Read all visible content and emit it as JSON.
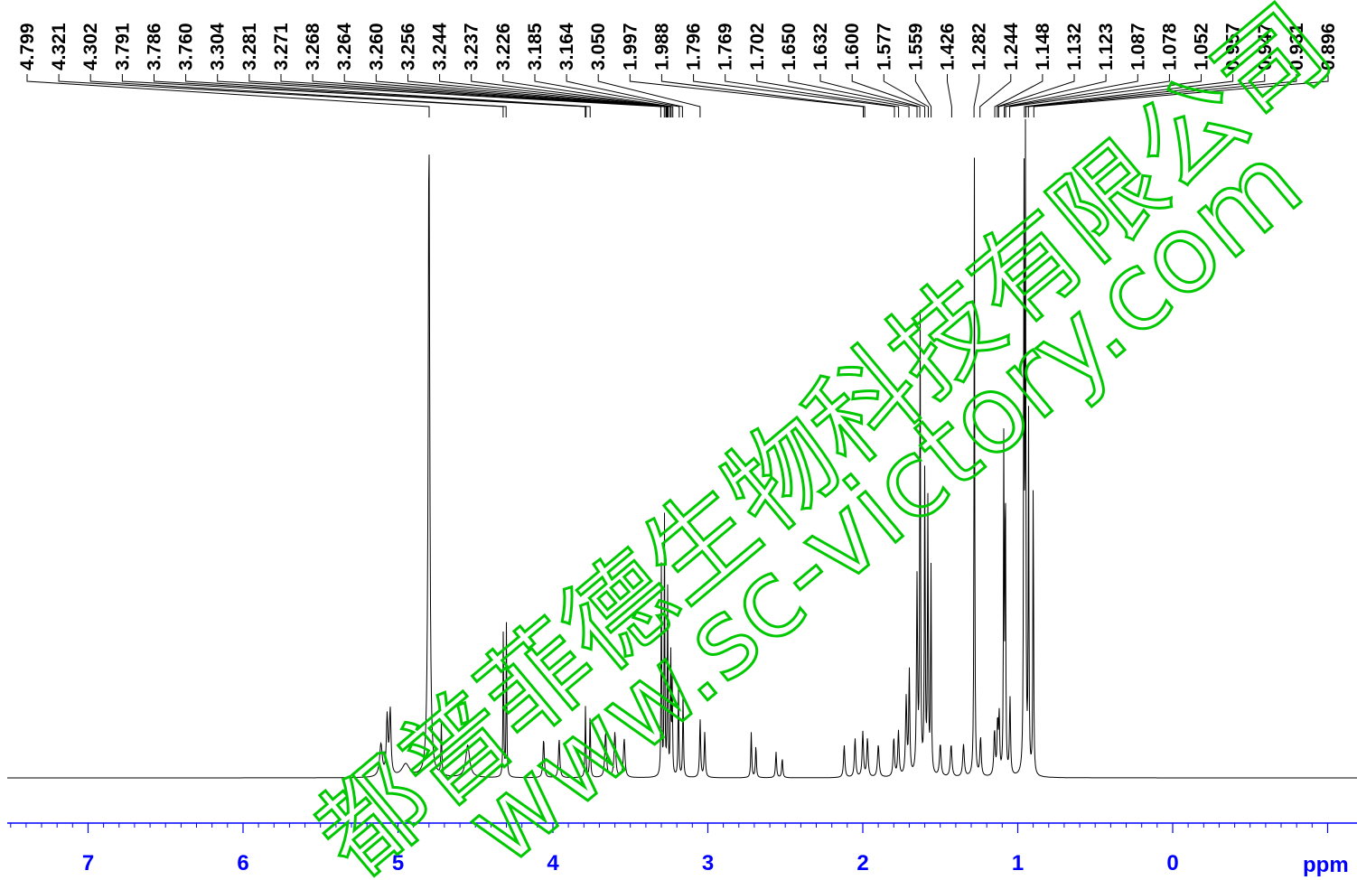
{
  "chart_data": {
    "type": "line",
    "title": "",
    "xlabel": "ppm",
    "ylabel": "",
    "xlim": [
      7.6,
      -1.05
    ],
    "x_direction": "reversed",
    "grid": false,
    "legend": "none",
    "ticks": [
      {
        "value": 7,
        "label": "7"
      },
      {
        "value": 6,
        "label": "6"
      },
      {
        "value": 5,
        "label": "5"
      },
      {
        "value": 4,
        "label": "4"
      },
      {
        "value": 3,
        "label": "3"
      },
      {
        "value": 2,
        "label": "2"
      },
      {
        "value": 1,
        "label": "1"
      },
      {
        "value": 0,
        "label": "0"
      }
    ],
    "minor_tick_step": 0.1,
    "peak_labels": [
      "4.799",
      "4.321",
      "4.302",
      "3.791",
      "3.786",
      "3.760",
      "3.304",
      "3.281",
      "3.271",
      "3.268",
      "3.264",
      "3.260",
      "3.256",
      "3.244",
      "3.237",
      "3.226",
      "3.185",
      "3.164",
      "3.050",
      "1.997",
      "1.988",
      "1.796",
      "1.769",
      "1.702",
      "1.650",
      "1.632",
      "1.600",
      "1.577",
      "1.559",
      "1.426",
      "1.282",
      "1.244",
      "1.148",
      "1.132",
      "1.123",
      "1.087",
      "1.078",
      "1.052",
      "0.957",
      "0.947",
      "0.931",
      "0.896"
    ],
    "spectrum_peaks": [
      {
        "ppm": 5.11,
        "intensity": 0.05,
        "width": 0.02
      },
      {
        "ppm": 5.07,
        "intensity": 0.09,
        "width": 0.012
      },
      {
        "ppm": 5.05,
        "intensity": 0.1,
        "width": 0.012
      },
      {
        "ppm": 4.95,
        "intensity": 0.02,
        "width": 0.06
      },
      {
        "ppm": 4.8,
        "intensity": 1.0,
        "width": 0.012
      },
      {
        "ppm": 4.72,
        "intensity": 0.08,
        "width": 0.006
      },
      {
        "ppm": 4.55,
        "intensity": 0.05,
        "width": 0.03
      },
      {
        "ppm": 4.32,
        "intensity": 0.24,
        "width": 0.005
      },
      {
        "ppm": 4.3,
        "intensity": 0.24,
        "width": 0.005
      },
      {
        "ppm": 4.06,
        "intensity": 0.06,
        "width": 0.01
      },
      {
        "ppm": 3.96,
        "intensity": 0.06,
        "width": 0.01
      },
      {
        "ppm": 3.79,
        "intensity": 0.11,
        "width": 0.006
      },
      {
        "ppm": 3.76,
        "intensity": 0.1,
        "width": 0.006
      },
      {
        "ppm": 3.66,
        "intensity": 0.07,
        "width": 0.012
      },
      {
        "ppm": 3.6,
        "intensity": 0.07,
        "width": 0.012
      },
      {
        "ppm": 3.54,
        "intensity": 0.06,
        "width": 0.012
      },
      {
        "ppm": 3.3,
        "intensity": 0.33,
        "width": 0.005
      },
      {
        "ppm": 3.28,
        "intensity": 0.4,
        "width": 0.005
      },
      {
        "ppm": 3.26,
        "intensity": 0.3,
        "width": 0.005
      },
      {
        "ppm": 3.24,
        "intensity": 0.21,
        "width": 0.005
      },
      {
        "ppm": 3.23,
        "intensity": 0.15,
        "width": 0.005
      },
      {
        "ppm": 3.19,
        "intensity": 0.14,
        "width": 0.006
      },
      {
        "ppm": 3.16,
        "intensity": 0.13,
        "width": 0.006
      },
      {
        "ppm": 3.05,
        "intensity": 0.09,
        "width": 0.008
      },
      {
        "ppm": 3.02,
        "intensity": 0.07,
        "width": 0.008
      },
      {
        "ppm": 2.72,
        "intensity": 0.07,
        "width": 0.007
      },
      {
        "ppm": 2.69,
        "intensity": 0.05,
        "width": 0.007
      },
      {
        "ppm": 2.56,
        "intensity": 0.04,
        "width": 0.008
      },
      {
        "ppm": 2.52,
        "intensity": 0.03,
        "width": 0.008
      },
      {
        "ppm": 2.12,
        "intensity": 0.05,
        "width": 0.01
      },
      {
        "ppm": 2.05,
        "intensity": 0.06,
        "width": 0.01
      },
      {
        "ppm": 2.0,
        "intensity": 0.07,
        "width": 0.01
      },
      {
        "ppm": 1.97,
        "intensity": 0.06,
        "width": 0.01
      },
      {
        "ppm": 1.9,
        "intensity": 0.05,
        "width": 0.012
      },
      {
        "ppm": 1.8,
        "intensity": 0.06,
        "width": 0.01
      },
      {
        "ppm": 1.77,
        "intensity": 0.07,
        "width": 0.01
      },
      {
        "ppm": 1.72,
        "intensity": 0.12,
        "width": 0.01
      },
      {
        "ppm": 1.7,
        "intensity": 0.16,
        "width": 0.008
      },
      {
        "ppm": 1.65,
        "intensity": 0.3,
        "width": 0.008
      },
      {
        "ppm": 1.63,
        "intensity": 0.71,
        "width": 0.006
      },
      {
        "ppm": 1.6,
        "intensity": 0.48,
        "width": 0.006
      },
      {
        "ppm": 1.58,
        "intensity": 0.42,
        "width": 0.006
      },
      {
        "ppm": 1.56,
        "intensity": 0.32,
        "width": 0.006
      },
      {
        "ppm": 1.5,
        "intensity": 0.05,
        "width": 0.012
      },
      {
        "ppm": 1.43,
        "intensity": 0.05,
        "width": 0.012
      },
      {
        "ppm": 1.35,
        "intensity": 0.05,
        "width": 0.012
      },
      {
        "ppm": 1.28,
        "intensity": 0.96,
        "width": 0.005
      },
      {
        "ppm": 1.24,
        "intensity": 0.06,
        "width": 0.01
      },
      {
        "ppm": 1.15,
        "intensity": 0.07,
        "width": 0.01
      },
      {
        "ppm": 1.13,
        "intensity": 0.08,
        "width": 0.008
      },
      {
        "ppm": 1.12,
        "intensity": 0.09,
        "width": 0.008
      },
      {
        "ppm": 1.09,
        "intensity": 0.52,
        "width": 0.005
      },
      {
        "ppm": 1.08,
        "intensity": 0.5,
        "width": 0.005
      },
      {
        "ppm": 1.05,
        "intensity": 0.12,
        "width": 0.008
      },
      {
        "ppm": 0.96,
        "intensity": 0.98,
        "width": 0.005
      },
      {
        "ppm": 0.95,
        "intensity": 0.98,
        "width": 0.005
      },
      {
        "ppm": 0.93,
        "intensity": 0.55,
        "width": 0.005
      },
      {
        "ppm": 0.9,
        "intensity": 0.49,
        "width": 0.005
      }
    ]
  },
  "watermark": {
    "line1": "都普菲德生物科技有限公司",
    "line2": "www.sc-victory.com",
    "color": "#00c800"
  },
  "colors": {
    "axis": "#0000ff",
    "spectrum": "#000000",
    "labels": "#000000"
  }
}
